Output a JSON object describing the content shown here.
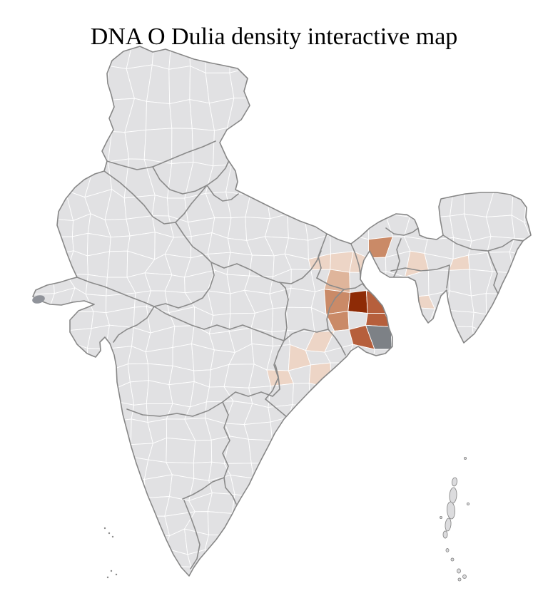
{
  "title": "DNA O Dulia density interactive map",
  "map": {
    "colors": {
      "background": "#FFFFFF",
      "base_district": "#E1E1E3",
      "district_border": "#FFFFFF",
      "state_border": "#8A8A8A",
      "country_outline": "#878787",
      "river_delta": "#7D8186",
      "island": "#DCDCDE",
      "island_outline": "#8A8A8A",
      "salt_marsh": "#90939A"
    },
    "density_scale": [
      {
        "level": "very-high",
        "color": "#8E2B06"
      },
      {
        "level": "high",
        "color": "#B65F3C"
      },
      {
        "level": "medium",
        "color": "#CA8A67"
      },
      {
        "level": "low",
        "color": "#DFB59B"
      },
      {
        "level": "very-low",
        "color": "#EDD5C6"
      },
      {
        "level": "none",
        "color": "#E1E1E3"
      }
    ],
    "hotspot_zones": {
      "delta": [
        [
          535,
          457,
          10
        ],
        [
          545,
          462,
          9
        ],
        [
          539,
          472,
          9
        ],
        [
          548,
          475,
          8
        ],
        [
          530,
          477,
          7
        ],
        [
          540,
          486,
          6
        ]
      ],
      "very_high": [
        [
          505,
          429,
          12
        ],
        [
          517,
          431,
          9
        ]
      ],
      "high": [
        [
          497,
          406,
          11
        ],
        [
          489,
          418,
          9
        ],
        [
          482,
          432,
          9
        ],
        [
          488,
          448,
          10
        ],
        [
          499,
          459,
          10
        ],
        [
          511,
          456,
          10
        ],
        [
          521,
          446,
          9
        ],
        [
          524,
          428,
          8
        ],
        [
          519,
          413,
          8
        ],
        [
          507,
          469,
          8
        ],
        [
          495,
          471,
          7
        ],
        [
          532,
          438,
          7
        ],
        [
          539,
          376,
          9
        ],
        [
          534,
          363,
          7
        ]
      ],
      "medium": [
        [
          474,
          424,
          8
        ],
        [
          472,
          442,
          9
        ],
        [
          474,
          457,
          8
        ],
        [
          483,
          470,
          8
        ],
        [
          489,
          480,
          6
        ],
        [
          527,
          351,
          8
        ],
        [
          513,
          398,
          7
        ]
      ],
      "low": [
        [
          478,
          400,
          8
        ],
        [
          492,
          408,
          7
        ],
        [
          464,
          432,
          6
        ],
        [
          463,
          448,
          6
        ],
        [
          516,
          343,
          6
        ],
        [
          530,
          341,
          6
        ],
        [
          543,
          347,
          6
        ]
      ],
      "very_low": [
        [
          452,
          478,
          13
        ],
        [
          438,
          491,
          13
        ],
        [
          423,
          505,
          13
        ],
        [
          408,
          520,
          12
        ],
        [
          398,
          534,
          11
        ],
        [
          390,
          543,
          9
        ],
        [
          405,
          551,
          10
        ],
        [
          416,
          561,
          9
        ],
        [
          427,
          571,
          8
        ],
        [
          440,
          530,
          10
        ],
        [
          452,
          515,
          10
        ],
        [
          462,
          501,
          10
        ],
        [
          461,
          470,
          9
        ],
        [
          470,
          488,
          8
        ],
        [
          438,
          584,
          7
        ],
        [
          449,
          573,
          7
        ],
        [
          463,
          352,
          11
        ],
        [
          476,
          366,
          11
        ],
        [
          488,
          380,
          9
        ],
        [
          497,
          371,
          8
        ],
        [
          456,
          368,
          8
        ],
        [
          471,
          385,
          8
        ],
        [
          493,
          357,
          7
        ],
        [
          505,
          382,
          7
        ],
        [
          508,
          368,
          7
        ],
        [
          513,
          383,
          6
        ],
        [
          520,
          338,
          6
        ],
        [
          534,
          340,
          6
        ],
        [
          547,
          356,
          7
        ],
        [
          552,
          347,
          5
        ],
        [
          566,
          366,
          7
        ],
        [
          577,
          370,
          7
        ],
        [
          590,
          371,
          6
        ],
        [
          601,
          374,
          6
        ],
        [
          612,
          379,
          5
        ],
        [
          621,
          374,
          5
        ],
        [
          634,
          378,
          5
        ],
        [
          645,
          374,
          5
        ],
        [
          656,
          380,
          5
        ],
        [
          663,
          390,
          5
        ],
        [
          596,
          428,
          9
        ],
        [
          602,
          441,
          8
        ],
        [
          591,
          414,
          6
        ],
        [
          608,
          435,
          6
        ],
        [
          633,
          441,
          8
        ],
        [
          636,
          456,
          7
        ],
        [
          630,
          426,
          6
        ],
        [
          641,
          466,
          5
        ],
        [
          668,
          394,
          5
        ],
        [
          676,
          385,
          4
        ],
        [
          313,
          296,
          7
        ]
      ]
    }
  }
}
